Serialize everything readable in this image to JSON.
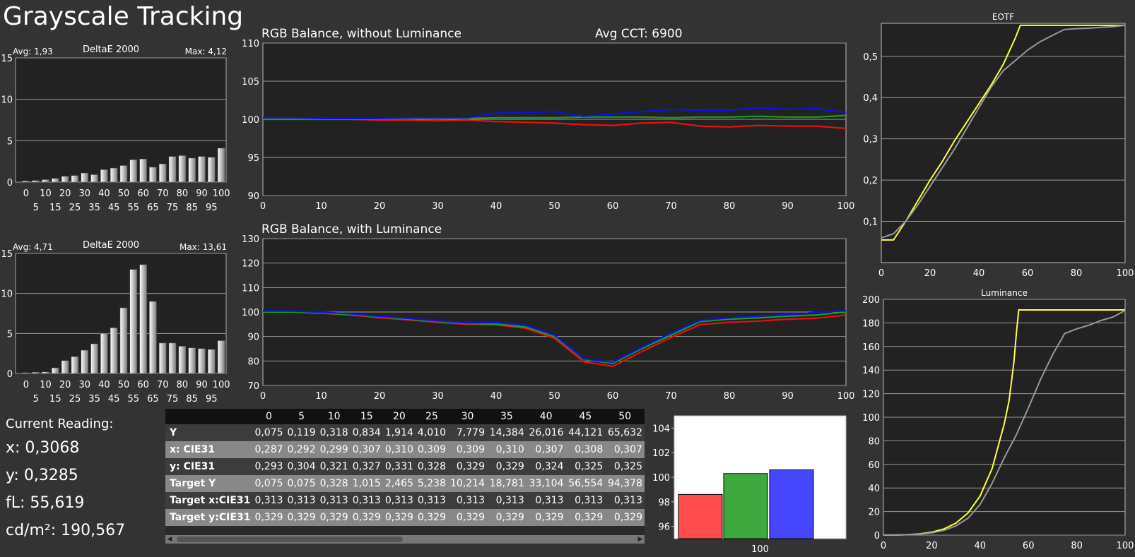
{
  "page": {
    "title": "Grayscale Tracking",
    "colors": {
      "red": "#e81010",
      "green": "#1aa01a",
      "blue": "#1010e8",
      "target": "#ffff40",
      "measured": "#999999",
      "grid": "#9a9a9a"
    }
  },
  "reading": {
    "header": "Current Reading:",
    "x": "x: 0,3068",
    "y": "y: 0,3285",
    "fl": "fL: 55,619",
    "cdm2": "cd/m²: 190,567"
  },
  "table": {
    "columns": [
      "",
      "0",
      "5",
      "10",
      "15",
      "20",
      "25",
      "30",
      "35",
      "40",
      "45",
      "50"
    ],
    "rows": [
      {
        "label": "Y",
        "cells": [
          "0,075",
          "0,119",
          "0,318",
          "0,834",
          "1,914",
          "4,010",
          "7,779",
          "14,384",
          "26,016",
          "44,121",
          "65,632"
        ]
      },
      {
        "label": "x: CIE31",
        "cells": [
          "0,287",
          "0,292",
          "0,299",
          "0,307",
          "0,310",
          "0,309",
          "0,309",
          "0,310",
          "0,307",
          "0,308",
          "0,307"
        ]
      },
      {
        "label": "y: CIE31",
        "cells": [
          "0,293",
          "0,304",
          "0,321",
          "0,327",
          "0,331",
          "0,328",
          "0,329",
          "0,329",
          "0,324",
          "0,325",
          "0,325"
        ]
      },
      {
        "label": "Target Y",
        "cells": [
          "0,075",
          "0,075",
          "0,328",
          "1,015",
          "2,465",
          "5,238",
          "10,214",
          "18,781",
          "33,104",
          "56,554",
          "94,378"
        ]
      },
      {
        "label": "Target x:CIE31",
        "cells": [
          "0,313",
          "0,313",
          "0,313",
          "0,313",
          "0,313",
          "0,313",
          "0,313",
          "0,313",
          "0,313",
          "0,313",
          "0,313"
        ]
      },
      {
        "label": "Target y:CIE31",
        "cells": [
          "0,329",
          "0,329",
          "0,329",
          "0,329",
          "0,329",
          "0,329",
          "0,329",
          "0,329",
          "0,329",
          "0,329",
          "0,329"
        ]
      }
    ]
  },
  "chart_data": [
    {
      "id": "deltaE1",
      "type": "bar",
      "title": "DeltaE 2000",
      "avg_label": "Avg: 1,93",
      "max_label": "Max: 4,12",
      "ylim": [
        0,
        15
      ],
      "yticks": [
        0,
        5,
        10,
        15
      ],
      "x": [
        0,
        5,
        10,
        15,
        20,
        25,
        30,
        35,
        40,
        45,
        50,
        55,
        60,
        65,
        70,
        75,
        80,
        85,
        90,
        95,
        100
      ],
      "values": [
        0.15,
        0.2,
        0.3,
        0.45,
        0.7,
        0.8,
        1.1,
        0.9,
        1.5,
        1.7,
        2.0,
        2.7,
        2.8,
        1.8,
        2.2,
        3.1,
        3.2,
        2.9,
        3.1,
        3.0,
        4.1
      ],
      "grid": true
    },
    {
      "id": "deltaE2",
      "type": "bar",
      "title": "DeltaE 2000",
      "avg_label": "Avg: 4,71",
      "max_label": "Max: 13,61",
      "ylim": [
        0,
        15
      ],
      "yticks": [
        0,
        5,
        10,
        15
      ],
      "x": [
        0,
        5,
        10,
        15,
        20,
        25,
        30,
        35,
        40,
        45,
        50,
        55,
        60,
        65,
        70,
        75,
        80,
        85,
        90,
        95,
        100
      ],
      "values": [
        0.1,
        0.15,
        0.2,
        0.7,
        1.6,
        2.1,
        2.9,
        3.7,
        5.0,
        5.7,
        8.2,
        13.0,
        13.6,
        9.0,
        3.8,
        3.8,
        3.4,
        3.2,
        3.1,
        3.0,
        4.1
      ],
      "grid": true
    },
    {
      "id": "rgb1",
      "type": "line",
      "title": "RGB Balance, without Luminance",
      "annotation": "Avg CCT: 6900",
      "xlim": [
        0,
        100
      ],
      "ylim": [
        90,
        110
      ],
      "yticks": [
        90,
        95,
        100,
        105,
        110
      ],
      "x": [
        0,
        5,
        10,
        15,
        20,
        25,
        30,
        35,
        40,
        45,
        50,
        55,
        60,
        65,
        70,
        75,
        80,
        85,
        90,
        95,
        100
      ],
      "series": [
        {
          "color": "red",
          "values": [
            100.2,
            100.1,
            100.1,
            100.0,
            99.9,
            99.9,
            99.8,
            99.9,
            99.7,
            99.6,
            99.5,
            99.3,
            99.2,
            99.5,
            99.6,
            99.1,
            99.0,
            99.2,
            99.1,
            99.1,
            98.8
          ]
        },
        {
          "color": "green",
          "values": [
            100.0,
            100.0,
            100.0,
            100.0,
            100.0,
            100.1,
            100.1,
            100.1,
            100.2,
            100.2,
            100.2,
            100.3,
            100.3,
            100.3,
            100.2,
            100.3,
            100.3,
            100.4,
            100.3,
            100.3,
            100.5
          ]
        },
        {
          "color": "blue",
          "values": [
            100.2,
            100.2,
            100.1,
            100.1,
            100.1,
            100.2,
            100.2,
            100.2,
            100.8,
            100.9,
            101.0,
            100.4,
            100.7,
            101.0,
            101.3,
            101.2,
            101.2,
            101.5,
            101.3,
            101.4,
            100.9
          ]
        }
      ],
      "grid": true
    },
    {
      "id": "rgb2",
      "type": "line",
      "title": "RGB Balance, with Luminance",
      "xlim": [
        0,
        100
      ],
      "ylim": [
        70,
        130
      ],
      "yticks": [
        70,
        80,
        90,
        100,
        110,
        120,
        130
      ],
      "x": [
        0,
        5,
        10,
        15,
        20,
        25,
        30,
        35,
        40,
        45,
        50,
        55,
        60,
        65,
        70,
        75,
        80,
        85,
        90,
        95,
        100
      ],
      "series": [
        {
          "color": "red",
          "values": [
            100.0,
            100.0,
            99.5,
            98.8,
            97.7,
            96.8,
            95.8,
            95.0,
            94.8,
            93.4,
            89.3,
            79.7,
            77.8,
            83.9,
            89.6,
            94.9,
            95.8,
            96.3,
            97.1,
            97.5,
            98.8
          ]
        },
        {
          "color": "green",
          "values": [
            100.0,
            100.0,
            99.6,
            99.0,
            98.0,
            97.1,
            96.1,
            95.3,
            95.1,
            93.9,
            90.0,
            80.7,
            79.0,
            85.1,
            90.5,
            96.1,
            97.1,
            97.6,
            98.3,
            98.8,
            100.0
          ]
        },
        {
          "color": "blue",
          "values": [
            100.4,
            100.4,
            99.9,
            99.3,
            98.2,
            97.4,
            96.4,
            95.6,
            95.7,
            94.6,
            90.6,
            80.9,
            79.5,
            85.6,
            91.4,
            96.6,
            97.6,
            98.4,
            98.9,
            99.9,
            100.5
          ]
        }
      ],
      "grid": true
    },
    {
      "id": "mini",
      "type": "bar",
      "categories": [
        "100"
      ],
      "ylim": [
        95,
        105
      ],
      "yticks": [
        96,
        98,
        100,
        102,
        104
      ],
      "series": [
        {
          "color": "red",
          "values": [
            98.6
          ]
        },
        {
          "color": "green",
          "values": [
            100.3
          ]
        },
        {
          "color": "blue",
          "values": [
            100.6
          ]
        }
      ],
      "grid": false
    },
    {
      "id": "eotf",
      "type": "line",
      "title": "EOTF",
      "xlim": [
        0,
        100
      ],
      "ylim": [
        0,
        0.58
      ],
      "yticks": [
        0.1,
        0.2,
        0.3,
        0.4,
        0.5
      ],
      "ytick_labels": [
        "0,1",
        "0,2",
        "0,3",
        "0,4",
        "0,5"
      ],
      "xticks": [
        0,
        20,
        40,
        60,
        80,
        100
      ],
      "series": [
        {
          "color": "target",
          "x": [
            0,
            5,
            10,
            15,
            20,
            25,
            30,
            35,
            40,
            45,
            50,
            55,
            57,
            60,
            70,
            80,
            90,
            100
          ],
          "values": [
            0.055,
            0.055,
            0.1,
            0.15,
            0.2,
            0.245,
            0.295,
            0.34,
            0.385,
            0.43,
            0.48,
            0.545,
            0.575,
            0.575,
            0.575,
            0.575,
            0.575,
            0.575
          ]
        },
        {
          "color": "measured",
          "x": [
            0,
            5,
            10,
            15,
            20,
            25,
            30,
            35,
            40,
            45,
            50,
            55,
            60,
            65,
            70,
            75,
            80,
            85,
            90,
            95,
            100
          ],
          "values": [
            0.06,
            0.07,
            0.1,
            0.14,
            0.185,
            0.23,
            0.275,
            0.325,
            0.375,
            0.425,
            0.465,
            0.49,
            0.515,
            0.535,
            0.55,
            0.565,
            0.567,
            0.568,
            0.57,
            0.572,
            0.575
          ]
        }
      ],
      "grid": true
    },
    {
      "id": "lum",
      "type": "line",
      "title": "Luminance",
      "xlim": [
        0,
        100
      ],
      "ylim": [
        0,
        200
      ],
      "yticks": [
        0,
        20,
        40,
        60,
        80,
        100,
        120,
        140,
        160,
        180,
        200
      ],
      "xticks": [
        0,
        20,
        40,
        60,
        80,
        100
      ],
      "series": [
        {
          "color": "target",
          "x": [
            0,
            5,
            10,
            15,
            20,
            25,
            30,
            35,
            40,
            45,
            50,
            52,
            54,
            55,
            56,
            57,
            60,
            70,
            80,
            90,
            100
          ],
          "values": [
            0.075,
            0.075,
            0.33,
            1.0,
            2.5,
            5.2,
            10.2,
            18.8,
            33.1,
            56.6,
            94.4,
            114,
            147,
            171,
            191,
            191,
            191,
            191,
            191,
            191,
            191
          ]
        },
        {
          "color": "measured",
          "x": [
            0,
            5,
            10,
            15,
            20,
            25,
            30,
            35,
            40,
            45,
            50,
            55,
            60,
            65,
            70,
            75,
            80,
            85,
            90,
            95,
            100
          ],
          "values": [
            0.075,
            0.12,
            0.32,
            0.83,
            1.9,
            4.0,
            7.8,
            14.4,
            26.0,
            44.1,
            65.6,
            85,
            108,
            132,
            153,
            171,
            175,
            178,
            182,
            185,
            190.6
          ]
        }
      ],
      "grid": true
    }
  ]
}
